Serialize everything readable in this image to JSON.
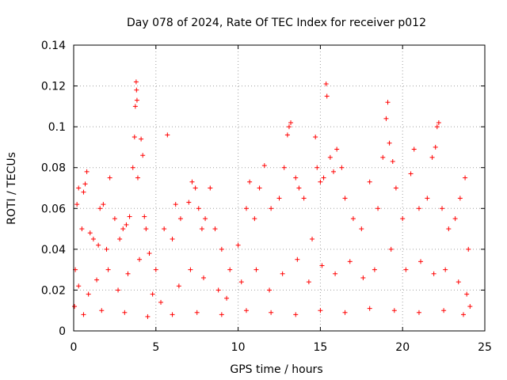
{
  "chart_data": {
    "type": "scatter",
    "title": "Day 078 of 2024, Rate Of TEC Index for receiver p012",
    "xlabel": "GPS time / hours",
    "ylabel": "ROTI / TECUs",
    "xlim": [
      0,
      25
    ],
    "ylim": [
      0,
      0.14
    ],
    "xticks": [
      0,
      5,
      10,
      15,
      20,
      25
    ],
    "xtick_labels": [
      "0",
      "5",
      "10",
      "15",
      "20",
      "25"
    ],
    "yticks": [
      0,
      0.02,
      0.04,
      0.06,
      0.08,
      0.1,
      0.12,
      0.14
    ],
    "ytick_labels": [
      "0",
      "0.02",
      "0.04",
      "0.06",
      "0.08",
      "0.1",
      "0.12",
      "0.14"
    ],
    "grid": true,
    "marker": "plus",
    "color": "#ff0000",
    "series": [
      {
        "name": "ROTI",
        "points": [
          [
            0.05,
            0.012
          ],
          [
            0.1,
            0.03
          ],
          [
            0.2,
            0.062
          ],
          [
            0.3,
            0.07
          ],
          [
            0.5,
            0.05
          ],
          [
            0.6,
            0.068
          ],
          [
            0.7,
            0.072
          ],
          [
            0.8,
            0.078
          ],
          [
            1.0,
            0.048
          ],
          [
            1.2,
            0.045
          ],
          [
            1.5,
            0.042
          ],
          [
            1.6,
            0.06
          ],
          [
            1.8,
            0.062
          ],
          [
            2.0,
            0.04
          ],
          [
            2.2,
            0.075
          ],
          [
            2.5,
            0.055
          ],
          [
            2.8,
            0.045
          ],
          [
            3.0,
            0.05
          ],
          [
            3.2,
            0.052
          ],
          [
            3.4,
            0.056
          ],
          [
            3.6,
            0.08
          ],
          [
            3.7,
            0.095
          ],
          [
            3.75,
            0.11
          ],
          [
            3.8,
            0.122
          ],
          [
            3.82,
            0.118
          ],
          [
            3.85,
            0.113
          ],
          [
            3.9,
            0.075
          ],
          [
            4.1,
            0.094
          ],
          [
            4.2,
            0.086
          ],
          [
            4.3,
            0.056
          ],
          [
            4.4,
            0.05
          ],
          [
            4.6,
            0.038
          ],
          [
            5.0,
            0.03
          ],
          [
            5.5,
            0.05
          ],
          [
            5.7,
            0.096
          ],
          [
            6.0,
            0.045
          ],
          [
            6.2,
            0.062
          ],
          [
            6.5,
            0.055
          ],
          [
            7.0,
            0.063
          ],
          [
            7.2,
            0.073
          ],
          [
            7.4,
            0.07
          ],
          [
            7.6,
            0.06
          ],
          [
            7.8,
            0.05
          ],
          [
            8.0,
            0.055
          ],
          [
            8.3,
            0.07
          ],
          [
            8.6,
            0.05
          ],
          [
            9.0,
            0.04
          ],
          [
            9.5,
            0.03
          ],
          [
            10.0,
            0.042
          ],
          [
            10.5,
            0.06
          ],
          [
            10.7,
            0.073
          ],
          [
            11.0,
            0.055
          ],
          [
            11.3,
            0.07
          ],
          [
            11.6,
            0.081
          ],
          [
            12.0,
            0.06
          ],
          [
            12.5,
            0.065
          ],
          [
            12.8,
            0.08
          ],
          [
            13.0,
            0.096
          ],
          [
            13.1,
            0.1
          ],
          [
            13.2,
            0.102
          ],
          [
            13.5,
            0.075
          ],
          [
            13.7,
            0.07
          ],
          [
            14.0,
            0.065
          ],
          [
            14.5,
            0.045
          ],
          [
            14.7,
            0.095
          ],
          [
            14.8,
            0.08
          ],
          [
            15.0,
            0.073
          ],
          [
            15.2,
            0.075
          ],
          [
            15.35,
            0.121
          ],
          [
            15.4,
            0.115
          ],
          [
            15.6,
            0.085
          ],
          [
            15.8,
            0.078
          ],
          [
            16.0,
            0.089
          ],
          [
            16.3,
            0.08
          ],
          [
            16.5,
            0.065
          ],
          [
            17.0,
            0.055
          ],
          [
            17.5,
            0.05
          ],
          [
            18.0,
            0.073
          ],
          [
            18.5,
            0.06
          ],
          [
            18.8,
            0.085
          ],
          [
            19.0,
            0.104
          ],
          [
            19.1,
            0.112
          ],
          [
            19.2,
            0.092
          ],
          [
            19.4,
            0.083
          ],
          [
            19.6,
            0.07
          ],
          [
            20.0,
            0.055
          ],
          [
            20.5,
            0.077
          ],
          [
            20.7,
            0.089
          ],
          [
            21.0,
            0.06
          ],
          [
            21.5,
            0.065
          ],
          [
            21.8,
            0.085
          ],
          [
            22.0,
            0.09
          ],
          [
            22.1,
            0.1
          ],
          [
            22.2,
            0.102
          ],
          [
            22.4,
            0.06
          ],
          [
            22.8,
            0.05
          ],
          [
            23.2,
            0.055
          ],
          [
            23.5,
            0.065
          ],
          [
            23.8,
            0.075
          ],
          [
            24.0,
            0.04
          ],
          [
            0.3,
            0.022
          ],
          [
            0.9,
            0.018
          ],
          [
            1.4,
            0.025
          ],
          [
            2.1,
            0.03
          ],
          [
            2.7,
            0.02
          ],
          [
            3.3,
            0.028
          ],
          [
            4.0,
            0.035
          ],
          [
            4.8,
            0.018
          ],
          [
            5.3,
            0.014
          ],
          [
            6.4,
            0.022
          ],
          [
            7.1,
            0.03
          ],
          [
            7.9,
            0.026
          ],
          [
            8.8,
            0.02
          ],
          [
            9.3,
            0.016
          ],
          [
            10.2,
            0.024
          ],
          [
            11.1,
            0.03
          ],
          [
            11.9,
            0.02
          ],
          [
            12.7,
            0.028
          ],
          [
            13.6,
            0.035
          ],
          [
            14.3,
            0.024
          ],
          [
            15.1,
            0.032
          ],
          [
            15.9,
            0.028
          ],
          [
            16.8,
            0.034
          ],
          [
            17.6,
            0.026
          ],
          [
            18.3,
            0.03
          ],
          [
            19.3,
            0.04
          ],
          [
            20.2,
            0.03
          ],
          [
            21.1,
            0.034
          ],
          [
            21.9,
            0.028
          ],
          [
            22.6,
            0.03
          ],
          [
            23.4,
            0.024
          ],
          [
            23.9,
            0.018
          ],
          [
            0.6,
            0.008
          ],
          [
            1.7,
            0.01
          ],
          [
            3.1,
            0.009
          ],
          [
            4.5,
            0.007
          ],
          [
            6.0,
            0.008
          ],
          [
            7.5,
            0.009
          ],
          [
            9.0,
            0.008
          ],
          [
            10.5,
            0.01
          ],
          [
            12.0,
            0.009
          ],
          [
            13.5,
            0.008
          ],
          [
            15.0,
            0.01
          ],
          [
            16.5,
            0.009
          ],
          [
            18.0,
            0.011
          ],
          [
            19.5,
            0.01
          ],
          [
            21.0,
            0.009
          ],
          [
            22.5,
            0.01
          ],
          [
            23.7,
            0.008
          ],
          [
            24.1,
            0.012
          ]
        ]
      }
    ]
  }
}
